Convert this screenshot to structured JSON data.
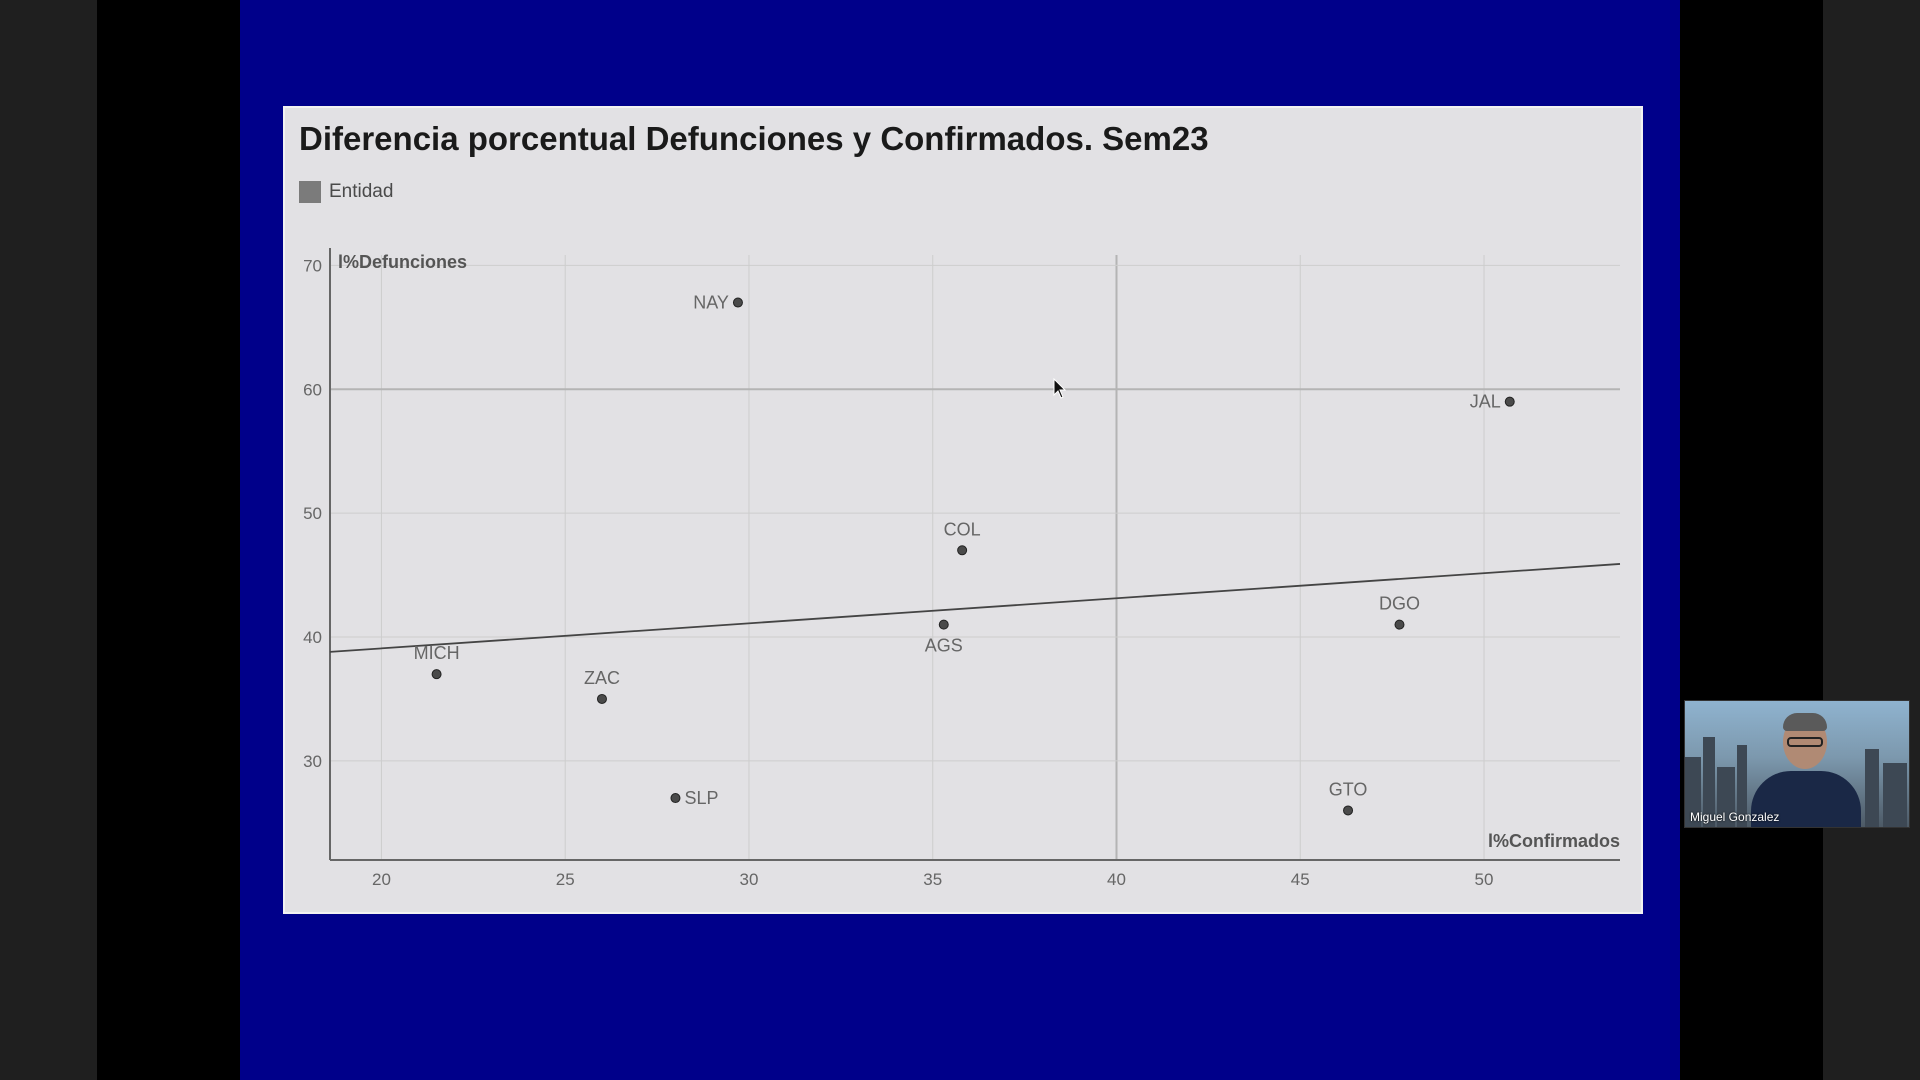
{
  "chart_data": {
    "type": "scatter",
    "title": "Diferencia porcentual Defunciones y Confirmados. Sem23",
    "legend": {
      "label": "Entidad",
      "color": "#7b7b7b",
      "placement": "top-left"
    },
    "xlabel": "l%Confirmados",
    "ylabel": "l%Defunciones",
    "xlim": [
      18.6,
      53.7
    ],
    "ylim": [
      22,
      71
    ],
    "xticks": [
      20,
      25,
      30,
      35,
      40,
      45,
      50
    ],
    "yticks": [
      30,
      40,
      50,
      60,
      70
    ],
    "major_x": 40,
    "major_y": 60,
    "grid": true,
    "points": [
      {
        "label": "NAY",
        "x": 29.7,
        "y": 67,
        "label_pos": "left"
      },
      {
        "label": "JAL",
        "x": 50.7,
        "y": 59,
        "label_pos": "left"
      },
      {
        "label": "COL",
        "x": 35.8,
        "y": 47,
        "label_pos": "above"
      },
      {
        "label": "AGS",
        "x": 35.3,
        "y": 41,
        "label_pos": "below"
      },
      {
        "label": "DGO",
        "x": 47.7,
        "y": 41,
        "label_pos": "above"
      },
      {
        "label": "MICH",
        "x": 21.5,
        "y": 37,
        "label_pos": "above"
      },
      {
        "label": "ZAC",
        "x": 26.0,
        "y": 35,
        "label_pos": "above"
      },
      {
        "label": "SLP",
        "x": 28.0,
        "y": 27,
        "label_pos": "right"
      },
      {
        "label": "GTO",
        "x": 46.3,
        "y": 26,
        "label_pos": "above"
      }
    ],
    "trendline": {
      "start": [
        18.6,
        38.8
      ],
      "end": [
        53.7,
        45.9
      ]
    }
  },
  "video": {
    "participant_name": "Miguel Gonzalez"
  }
}
